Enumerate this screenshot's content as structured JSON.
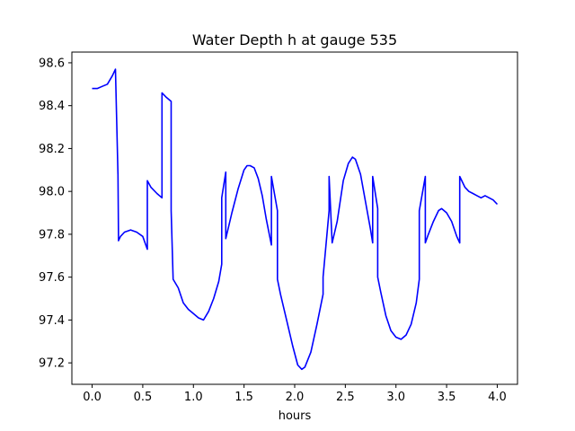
{
  "chart_data": {
    "type": "line",
    "title": "Water Depth h at gauge 535",
    "xlabel": "hours",
    "ylabel": "",
    "xlim": [
      -0.2,
      4.2
    ],
    "ylim": [
      97.1,
      98.65
    ],
    "xticks": [
      0.0,
      0.5,
      1.0,
      1.5,
      2.0,
      2.5,
      3.0,
      3.5,
      4.0
    ],
    "xtick_labels": [
      "0.0",
      "0.5",
      "1.0",
      "1.5",
      "2.0",
      "2.5",
      "3.0",
      "3.5",
      "4.0"
    ],
    "yticks": [
      97.2,
      97.4,
      97.6,
      97.8,
      98.0,
      98.2,
      98.4,
      98.6
    ],
    "ytick_labels": [
      "97.2",
      "97.4",
      "97.6",
      "97.8",
      "98.0",
      "98.2",
      "98.4",
      "98.6"
    ],
    "grid": false,
    "legend": "none",
    "series": [
      {
        "color": "#0000ff",
        "x": [
          0.0,
          0.05,
          0.1,
          0.15,
          0.2,
          0.23,
          0.255,
          0.255,
          0.26,
          0.26,
          0.28,
          0.32,
          0.38,
          0.44,
          0.5,
          0.545,
          0.545,
          0.58,
          0.64,
          0.69,
          0.69,
          0.73,
          0.78,
          0.78,
          0.8,
          0.85,
          0.9,
          0.95,
          1.0,
          1.05,
          1.1,
          1.15,
          1.2,
          1.25,
          1.28,
          1.28,
          1.32,
          1.32,
          1.34,
          1.38,
          1.44,
          1.5,
          1.53,
          1.56,
          1.6,
          1.64,
          1.68,
          1.72,
          1.77,
          1.77,
          1.83,
          1.83,
          1.86,
          1.92,
          1.98,
          2.03,
          2.07,
          2.1,
          2.16,
          2.22,
          2.28,
          2.28,
          2.34,
          2.34,
          2.37,
          2.42,
          2.48,
          2.53,
          2.57,
          2.6,
          2.65,
          2.7,
          2.75,
          2.77,
          2.77,
          2.82,
          2.82,
          2.85,
          2.9,
          2.95,
          3.0,
          3.05,
          3.1,
          3.15,
          3.2,
          3.23,
          3.23,
          3.29,
          3.29,
          3.32,
          3.37,
          3.42,
          3.45,
          3.5,
          3.55,
          3.6,
          3.63,
          3.63,
          3.68,
          3.72,
          3.76,
          3.8,
          3.84,
          3.88,
          3.92,
          3.96,
          4.0
        ],
        "y": [
          98.48,
          98.48,
          98.49,
          98.5,
          98.54,
          98.57,
          98.08,
          98.09,
          97.78,
          97.77,
          97.79,
          97.81,
          97.82,
          97.81,
          97.79,
          97.73,
          98.05,
          98.02,
          97.99,
          97.97,
          98.46,
          98.44,
          98.42,
          97.91,
          97.59,
          97.55,
          97.48,
          97.45,
          97.43,
          97.41,
          97.4,
          97.44,
          97.5,
          97.58,
          97.66,
          97.97,
          98.09,
          97.78,
          97.82,
          97.9,
          98.01,
          98.1,
          98.12,
          98.12,
          98.11,
          98.06,
          97.98,
          97.87,
          97.75,
          98.07,
          97.91,
          97.59,
          97.52,
          97.4,
          97.28,
          97.19,
          97.17,
          97.18,
          97.25,
          97.38,
          97.52,
          97.6,
          97.91,
          98.07,
          97.76,
          97.86,
          98.05,
          98.13,
          98.16,
          98.15,
          98.08,
          97.95,
          97.82,
          97.76,
          98.07,
          97.92,
          97.6,
          97.53,
          97.42,
          97.35,
          97.32,
          97.31,
          97.33,
          97.38,
          97.48,
          97.59,
          97.91,
          98.07,
          97.76,
          97.8,
          97.86,
          97.91,
          97.92,
          97.9,
          97.86,
          97.79,
          97.76,
          98.07,
          98.02,
          98.0,
          97.99,
          97.98,
          97.97,
          97.98,
          97.97,
          97.96,
          97.94
        ]
      }
    ]
  }
}
